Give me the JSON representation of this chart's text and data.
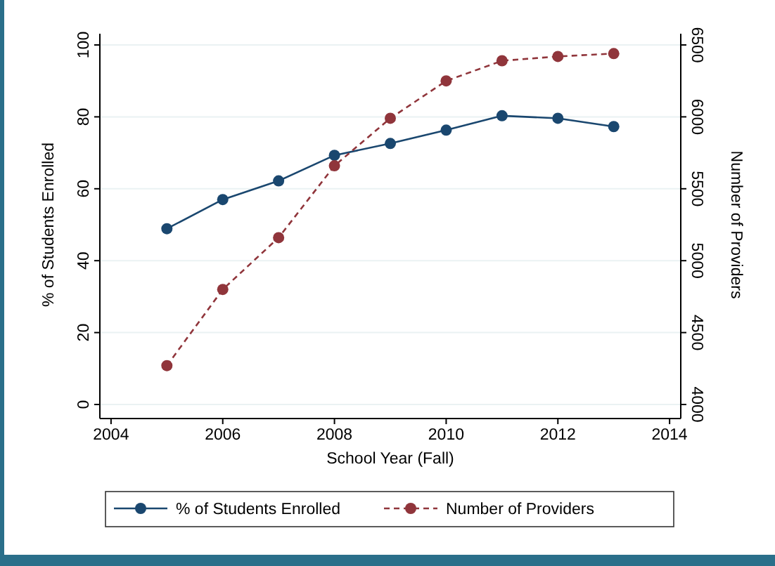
{
  "chart_data": {
    "type": "line",
    "xlabel": "School Year (Fall)",
    "ylabel": "% of Students Enrolled",
    "y2label": "Number of Providers",
    "x": [
      2005,
      2006,
      2007,
      2008,
      2009,
      2010,
      2011,
      2012,
      2013
    ],
    "series": [
      {
        "name": "% of Students Enrolled",
        "color": "#1a476f",
        "values": [
          48.9,
          57,
          62.2,
          69.3,
          72.6,
          76.3,
          80.3,
          79.6,
          77.3
        ],
        "line_style": "solid"
      },
      {
        "name": "Number of Providers",
        "color": "#90353b",
        "values": [
          4270,
          4800,
          5160,
          5660,
          5990,
          6250,
          6390,
          6420,
          6440
        ],
        "axis": "y2",
        "line_style": "dashed"
      }
    ],
    "xlim": [
      2003.8,
      2014.2
    ],
    "xticks": [
      2004,
      2006,
      2008,
      2010,
      2012,
      2014
    ],
    "ylim": [
      0,
      100
    ],
    "yticks": [
      0,
      20,
      40,
      60,
      80,
      100
    ],
    "y2lim": [
      4000,
      6500
    ],
    "y2ticks": [
      4000,
      4500,
      5000,
      5500,
      6000,
      6500
    ],
    "grid": "y",
    "marker": "circle",
    "legend": "bottom"
  }
}
